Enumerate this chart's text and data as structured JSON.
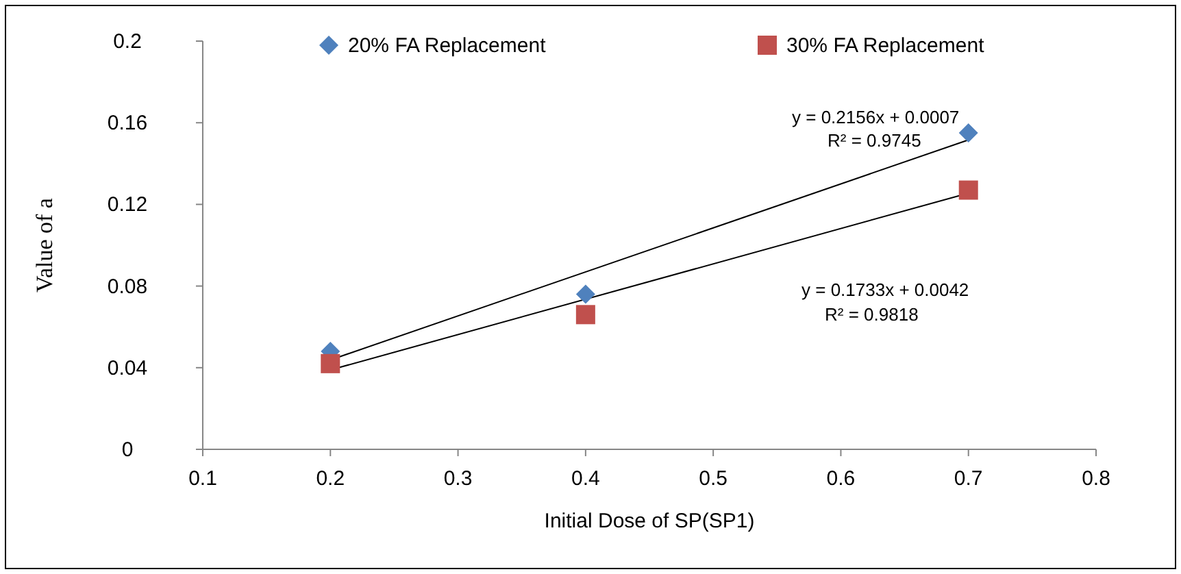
{
  "chart_data": {
    "type": "scatter",
    "xlabel": "Initial Dose of SP(SP1)",
    "ylabel": "Value of a",
    "xlim": [
      0.1,
      0.8
    ],
    "xticks": [
      0.1,
      0.2,
      0.3,
      0.4,
      0.5,
      0.6,
      0.7,
      0.8
    ],
    "ylim": [
      0,
      0.2
    ],
    "yticks": [
      0,
      0.04,
      0.08,
      0.12,
      0.16,
      0.2
    ],
    "grid": false,
    "legend": "top",
    "series": [
      {
        "name": "20% FA Replacement",
        "marker": "diamond",
        "color": "#4f81bd",
        "x": [
          0.2,
          0.4,
          0.7
        ],
        "values": [
          0.048,
          0.076,
          0.155
        ]
      },
      {
        "name": "30% FA Replacement",
        "marker": "square",
        "color": "#c0504d",
        "x": [
          0.2,
          0.4,
          0.7
        ],
        "values": [
          0.042,
          0.066,
          0.127
        ]
      },
      {
        "type": "line",
        "marker": "none",
        "color": "#000000",
        "x": [
          0.2,
          0.7
        ],
        "values": [
          0.0438,
          0.1516
        ]
      },
      {
        "type": "line",
        "marker": "none",
        "color": "#000000",
        "x": [
          0.2,
          0.7
        ],
        "values": [
          0.0389,
          0.1255
        ]
      }
    ],
    "annotations": [
      "y = 0.2156x + 0.0007",
      "R² = 0.9745",
      "y = 0.1733x + 0.0042",
      "R² = 0.9818"
    ]
  }
}
